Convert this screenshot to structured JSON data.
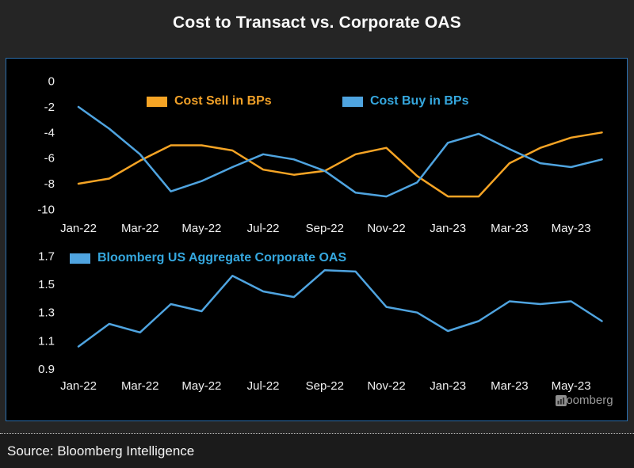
{
  "title": "Cost to Transact vs. Corporate OAS",
  "source": "Source: Bloomberg Intelligence",
  "watermark": "Bloomberg",
  "colors": {
    "header_bg": "#252525",
    "panel_bg": "#000000",
    "panel_border": "#2B6FAD",
    "footer_bg": "#1B1B1B",
    "tick_text": "#F2F2F2",
    "sell_orange": "#F5A425",
    "buy_blue": "#4FA4E0",
    "legend_sell_text": "#F0A028",
    "legend_buy_text": "#35A7DE",
    "watermark_text": "#9C9C9C"
  },
  "chart_data": [
    {
      "type": "line",
      "title": "Cost to Transact (top panel)",
      "x": [
        "Jan-22",
        "Feb-22",
        "Mar-22",
        "Apr-22",
        "May-22",
        "Jun-22",
        "Jul-22",
        "Aug-22",
        "Sep-22",
        "Oct-22",
        "Nov-22",
        "Dec-22",
        "Jan-23",
        "Feb-23",
        "Mar-23",
        "Apr-23",
        "May-23",
        "Jun-23"
      ],
      "xtick_labels": [
        "Jan-22",
        "Mar-22",
        "May-22",
        "Jul-22",
        "Sep-22",
        "Nov-22",
        "Jan-23",
        "Mar-23",
        "May-23"
      ],
      "ytick_labels": [
        "0",
        "-2",
        "-4",
        "-6",
        "-8",
        "-10"
      ],
      "ylim": [
        -10,
        0
      ],
      "grid": false,
      "legend_position": "inside-top",
      "series": [
        {
          "name": "Cost Sell in BPs",
          "color": "#F5A425",
          "values": [
            -8.0,
            -7.6,
            -6.2,
            -5.0,
            -5.0,
            -5.4,
            -6.9,
            -7.3,
            -7.0,
            -5.7,
            -5.2,
            -7.4,
            -9.0,
            -9.0,
            -6.4,
            -5.2,
            -4.4,
            -4.0
          ]
        },
        {
          "name": "Cost Buy in BPs",
          "color": "#4FA4E0",
          "values": [
            -2.0,
            -3.7,
            -5.7,
            -8.6,
            -7.8,
            -6.7,
            -5.7,
            -6.1,
            -7.0,
            -8.7,
            -9.0,
            -7.9,
            -4.8,
            -4.1,
            -5.3,
            -6.4,
            -6.7,
            -6.1
          ]
        }
      ]
    },
    {
      "type": "line",
      "title": "Corporate OAS (bottom panel)",
      "x": [
        "Jan-22",
        "Feb-22",
        "Mar-22",
        "Apr-22",
        "May-22",
        "Jun-22",
        "Jul-22",
        "Aug-22",
        "Sep-22",
        "Oct-22",
        "Nov-22",
        "Dec-22",
        "Jan-23",
        "Feb-23",
        "Mar-23",
        "Apr-23",
        "May-23",
        "Jun-23"
      ],
      "xtick_labels": [
        "Jan-22",
        "Mar-22",
        "May-22",
        "Jul-22",
        "Sep-22",
        "Nov-22",
        "Jan-23",
        "Mar-23",
        "May-23"
      ],
      "ytick_labels": [
        "1.7",
        "1.5",
        "1.3",
        "1.1",
        "0.9"
      ],
      "ylim": [
        0.9,
        1.7
      ],
      "grid": false,
      "legend_position": "inside-top-left",
      "series": [
        {
          "name": "Bloomberg US Aggregate Corporate OAS",
          "color": "#4FA4E0",
          "values": [
            1.06,
            1.22,
            1.16,
            1.36,
            1.31,
            1.56,
            1.45,
            1.41,
            1.6,
            1.59,
            1.34,
            1.3,
            1.17,
            1.24,
            1.38,
            1.36,
            1.38,
            1.24
          ]
        }
      ]
    }
  ]
}
